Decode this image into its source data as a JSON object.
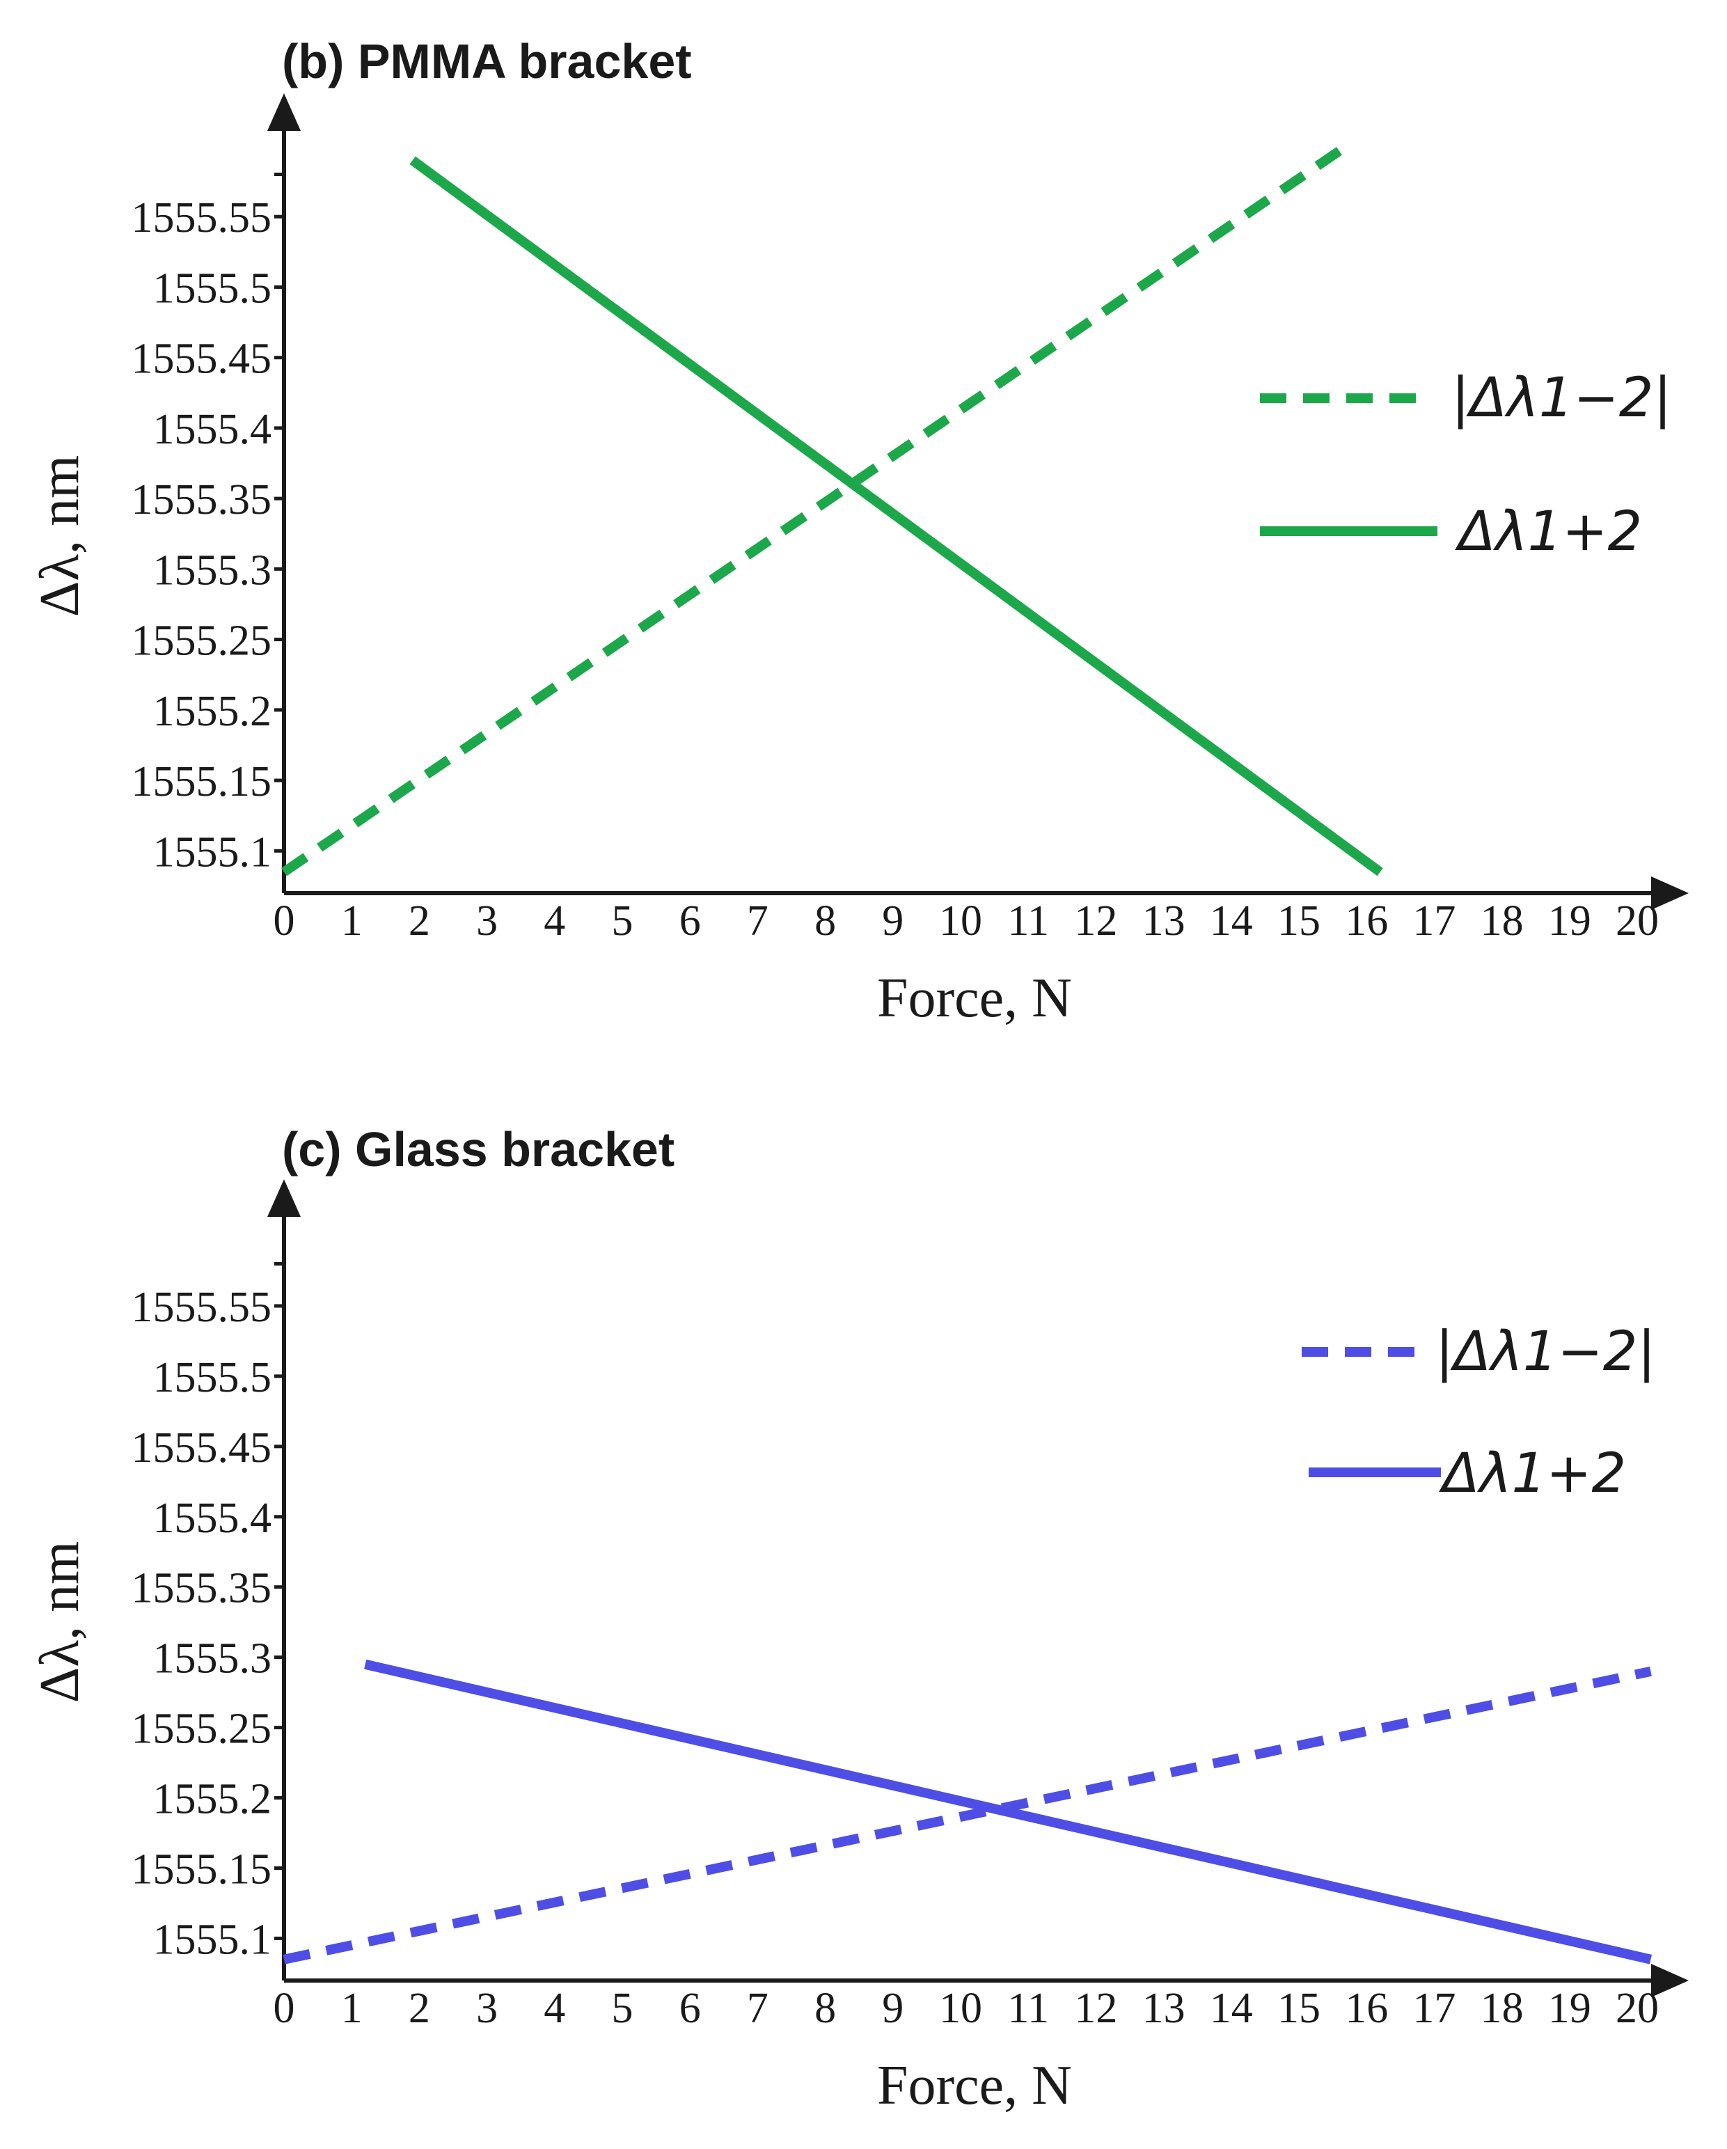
{
  "chart_data": [
    {
      "type": "line",
      "title": "(b) PMMA bracket",
      "xlabel": "Force, N",
      "ylabel": "Δλ, nm",
      "xlim": [
        0,
        20
      ],
      "ylim": [
        1555.07,
        1555.6
      ],
      "x_ticks": [
        "0",
        "1",
        "2",
        "3",
        "4",
        "5",
        "6",
        "7",
        "8",
        "9",
        "10",
        "11",
        "12",
        "13",
        "14",
        "15",
        "16",
        "17",
        "18",
        "19",
        "20"
      ],
      "y_ticks": [
        "1555.1",
        "1555.15",
        "1555.2",
        "1555.25",
        "1555.3",
        "1555.35",
        "1555.4",
        "1555.45",
        "1555.5",
        "1555.55"
      ],
      "legend_position": "right",
      "series": [
        {
          "name": "|Δλ1−2|",
          "style": "dashed",
          "color": "#1ca84a",
          "x": [
            0,
            15.7
          ],
          "y": [
            1555.085,
            1555.6
          ]
        },
        {
          "name": "Δλ1+2",
          "style": "solid",
          "color": "#1ca84a",
          "x": [
            1.9,
            16.2
          ],
          "y": [
            1555.59,
            1555.085
          ]
        }
      ]
    },
    {
      "type": "line",
      "title": "(c) Glass bracket",
      "xlabel": "Force, N",
      "ylabel": "Δλ, nm",
      "xlim": [
        0,
        20
      ],
      "ylim": [
        1555.07,
        1555.6
      ],
      "x_ticks": [
        "0",
        "1",
        "2",
        "3",
        "4",
        "5",
        "6",
        "7",
        "8",
        "9",
        "10",
        "11",
        "12",
        "13",
        "14",
        "15",
        "16",
        "17",
        "18",
        "19",
        "20"
      ],
      "y_ticks": [
        "1555.1",
        "1555.15",
        "1555.2",
        "1555.25",
        "1555.3",
        "1555.35",
        "1555.4",
        "1555.45",
        "1555.5",
        "1555.55"
      ],
      "legend_position": "right",
      "series": [
        {
          "name": "|Δλ1−2|",
          "style": "dashed",
          "color": "#4e4ee6",
          "x": [
            0,
            20.2
          ],
          "y": [
            1555.085,
            1555.29
          ]
        },
        {
          "name": "Δλ1+2",
          "style": "solid",
          "color": "#4e4ee6",
          "x": [
            1.2,
            20.2
          ],
          "y": [
            1555.295,
            1555.085
          ]
        }
      ]
    }
  ]
}
